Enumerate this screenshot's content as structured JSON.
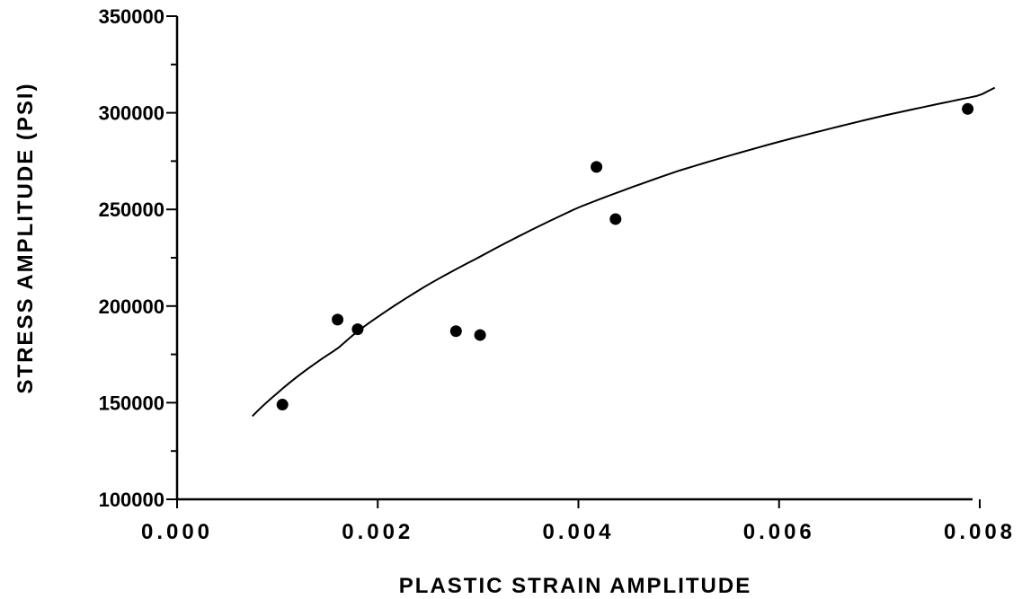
{
  "chart_data": {
    "type": "scatter",
    "title": "",
    "xlabel": "PLASTIC STRAIN AMPLITUDE",
    "ylabel": "STRESS AMPLITUDE (PSI)",
    "xlim": [
      0.0,
      0.008
    ],
    "ylim": [
      100000,
      350000
    ],
    "x_ticks": [
      0.0,
      0.002,
      0.004,
      0.006,
      0.008
    ],
    "x_tick_labels": [
      "0.000",
      "0.002",
      "0.004",
      "0.006",
      "0.008"
    ],
    "y_ticks": [
      100000,
      150000,
      200000,
      250000,
      300000,
      350000
    ],
    "y_tick_labels": [
      "100000",
      "150000",
      "200000",
      "250000",
      "300000",
      "350000"
    ],
    "y_minor_step": 25000,
    "grid": false,
    "series": [
      {
        "kind": "points",
        "x": [
          0.00105,
          0.0016,
          0.0018,
          0.00278,
          0.00302,
          0.00418,
          0.00437,
          0.00788
        ],
        "y": [
          149000,
          193000,
          188000,
          187000,
          185000,
          272000,
          245000,
          302000
        ]
      },
      {
        "kind": "fit-curve",
        "x": [
          0.00075,
          0.001,
          0.0016,
          0.0018,
          0.0025,
          0.003,
          0.004,
          0.005,
          0.006,
          0.007,
          0.008,
          0.00815
        ],
        "y": [
          143000,
          155000,
          178000,
          187000,
          211000,
          225000,
          251000,
          270000,
          285000,
          298000,
          309000,
          313000
        ]
      }
    ]
  }
}
